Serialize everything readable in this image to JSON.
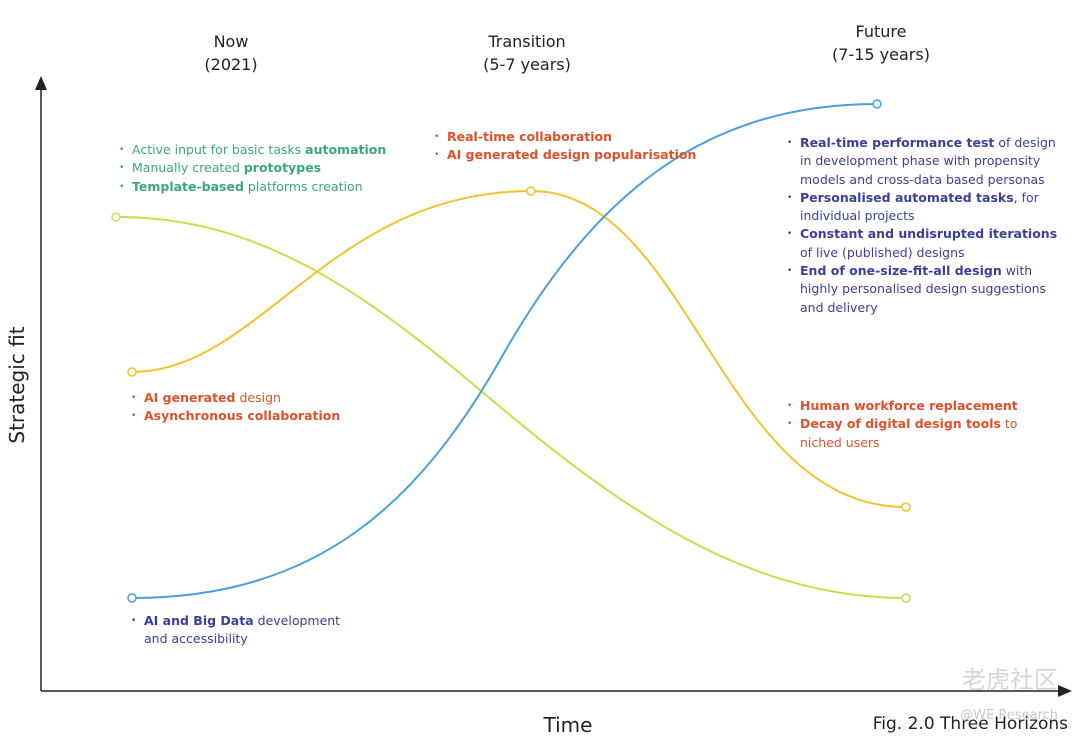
{
  "headers": [
    {
      "title": "Now",
      "subtitle": "(2021)"
    },
    {
      "title": "Transition",
      "subtitle": "(5-7 years)"
    },
    {
      "title": "Future",
      "subtitle": "(7-15 years)"
    }
  ],
  "axes": {
    "y_label": "Strategic fit",
    "x_label": "Time"
  },
  "caption": "Fig. 2.0 Three Horizons",
  "watermark": {
    "brand": "老虎社区",
    "handle": "@WE Research"
  },
  "lists": [
    {
      "color": "#3aa87a",
      "items": [
        [
          {
            "text": "Active input for basic tasks ",
            "bold": false
          },
          {
            "text": "automation",
            "bold": true
          }
        ],
        [
          {
            "text": "Manually created ",
            "bold": false
          },
          {
            "text": "prototypes",
            "bold": true
          }
        ],
        [
          {
            "text": "Template-based",
            "bold": true
          },
          {
            "text": " platforms creation",
            "bold": false
          }
        ]
      ]
    },
    {
      "color": "#e0502a",
      "items": [
        [
          {
            "text": "Real-time collaboration",
            "bold": true
          }
        ],
        [
          {
            "text": "AI generated design popularisation",
            "bold": true
          }
        ]
      ]
    },
    {
      "color": "#3a3f9a",
      "items": [
        [
          {
            "text": "Real-time performance test",
            "bold": true
          },
          {
            "text": " of design in development phase with propensity models and cross-data based personas",
            "bold": false
          }
        ],
        [
          {
            "text": "Personalised automated tasks",
            "bold": true
          },
          {
            "text": ", for individual projects",
            "bold": false
          }
        ],
        [
          {
            "text": "Constant and undisrupted  iterations",
            "bold": true
          },
          {
            "text": " of live (published) designs",
            "bold": false
          }
        ],
        [
          {
            "text": "End of one-size-fit-all design",
            "bold": true
          },
          {
            "text": " with highly personalised design suggestions and delivery",
            "bold": false
          }
        ]
      ]
    },
    {
      "color": "#e0502a",
      "items": [
        [
          {
            "text": "AI generated",
            "bold": true
          },
          {
            "text": " design",
            "bold": false
          }
        ],
        [
          {
            "text": "Asynchronous collaboration",
            "bold": true
          }
        ]
      ]
    },
    {
      "color": "#e0502a",
      "items": [
        [
          {
            "text": "Human workforce replacement",
            "bold": true
          }
        ],
        [
          {
            "text": "Decay of digital design tools",
            "bold": true
          },
          {
            "text": " to niched users",
            "bold": false
          }
        ]
      ]
    },
    {
      "color": "#3a3f9a",
      "items": [
        [
          {
            "text": "AI and Big Data",
            "bold": true
          },
          {
            "text": " development and accessibility",
            "bold": false
          }
        ]
      ]
    }
  ]
}
